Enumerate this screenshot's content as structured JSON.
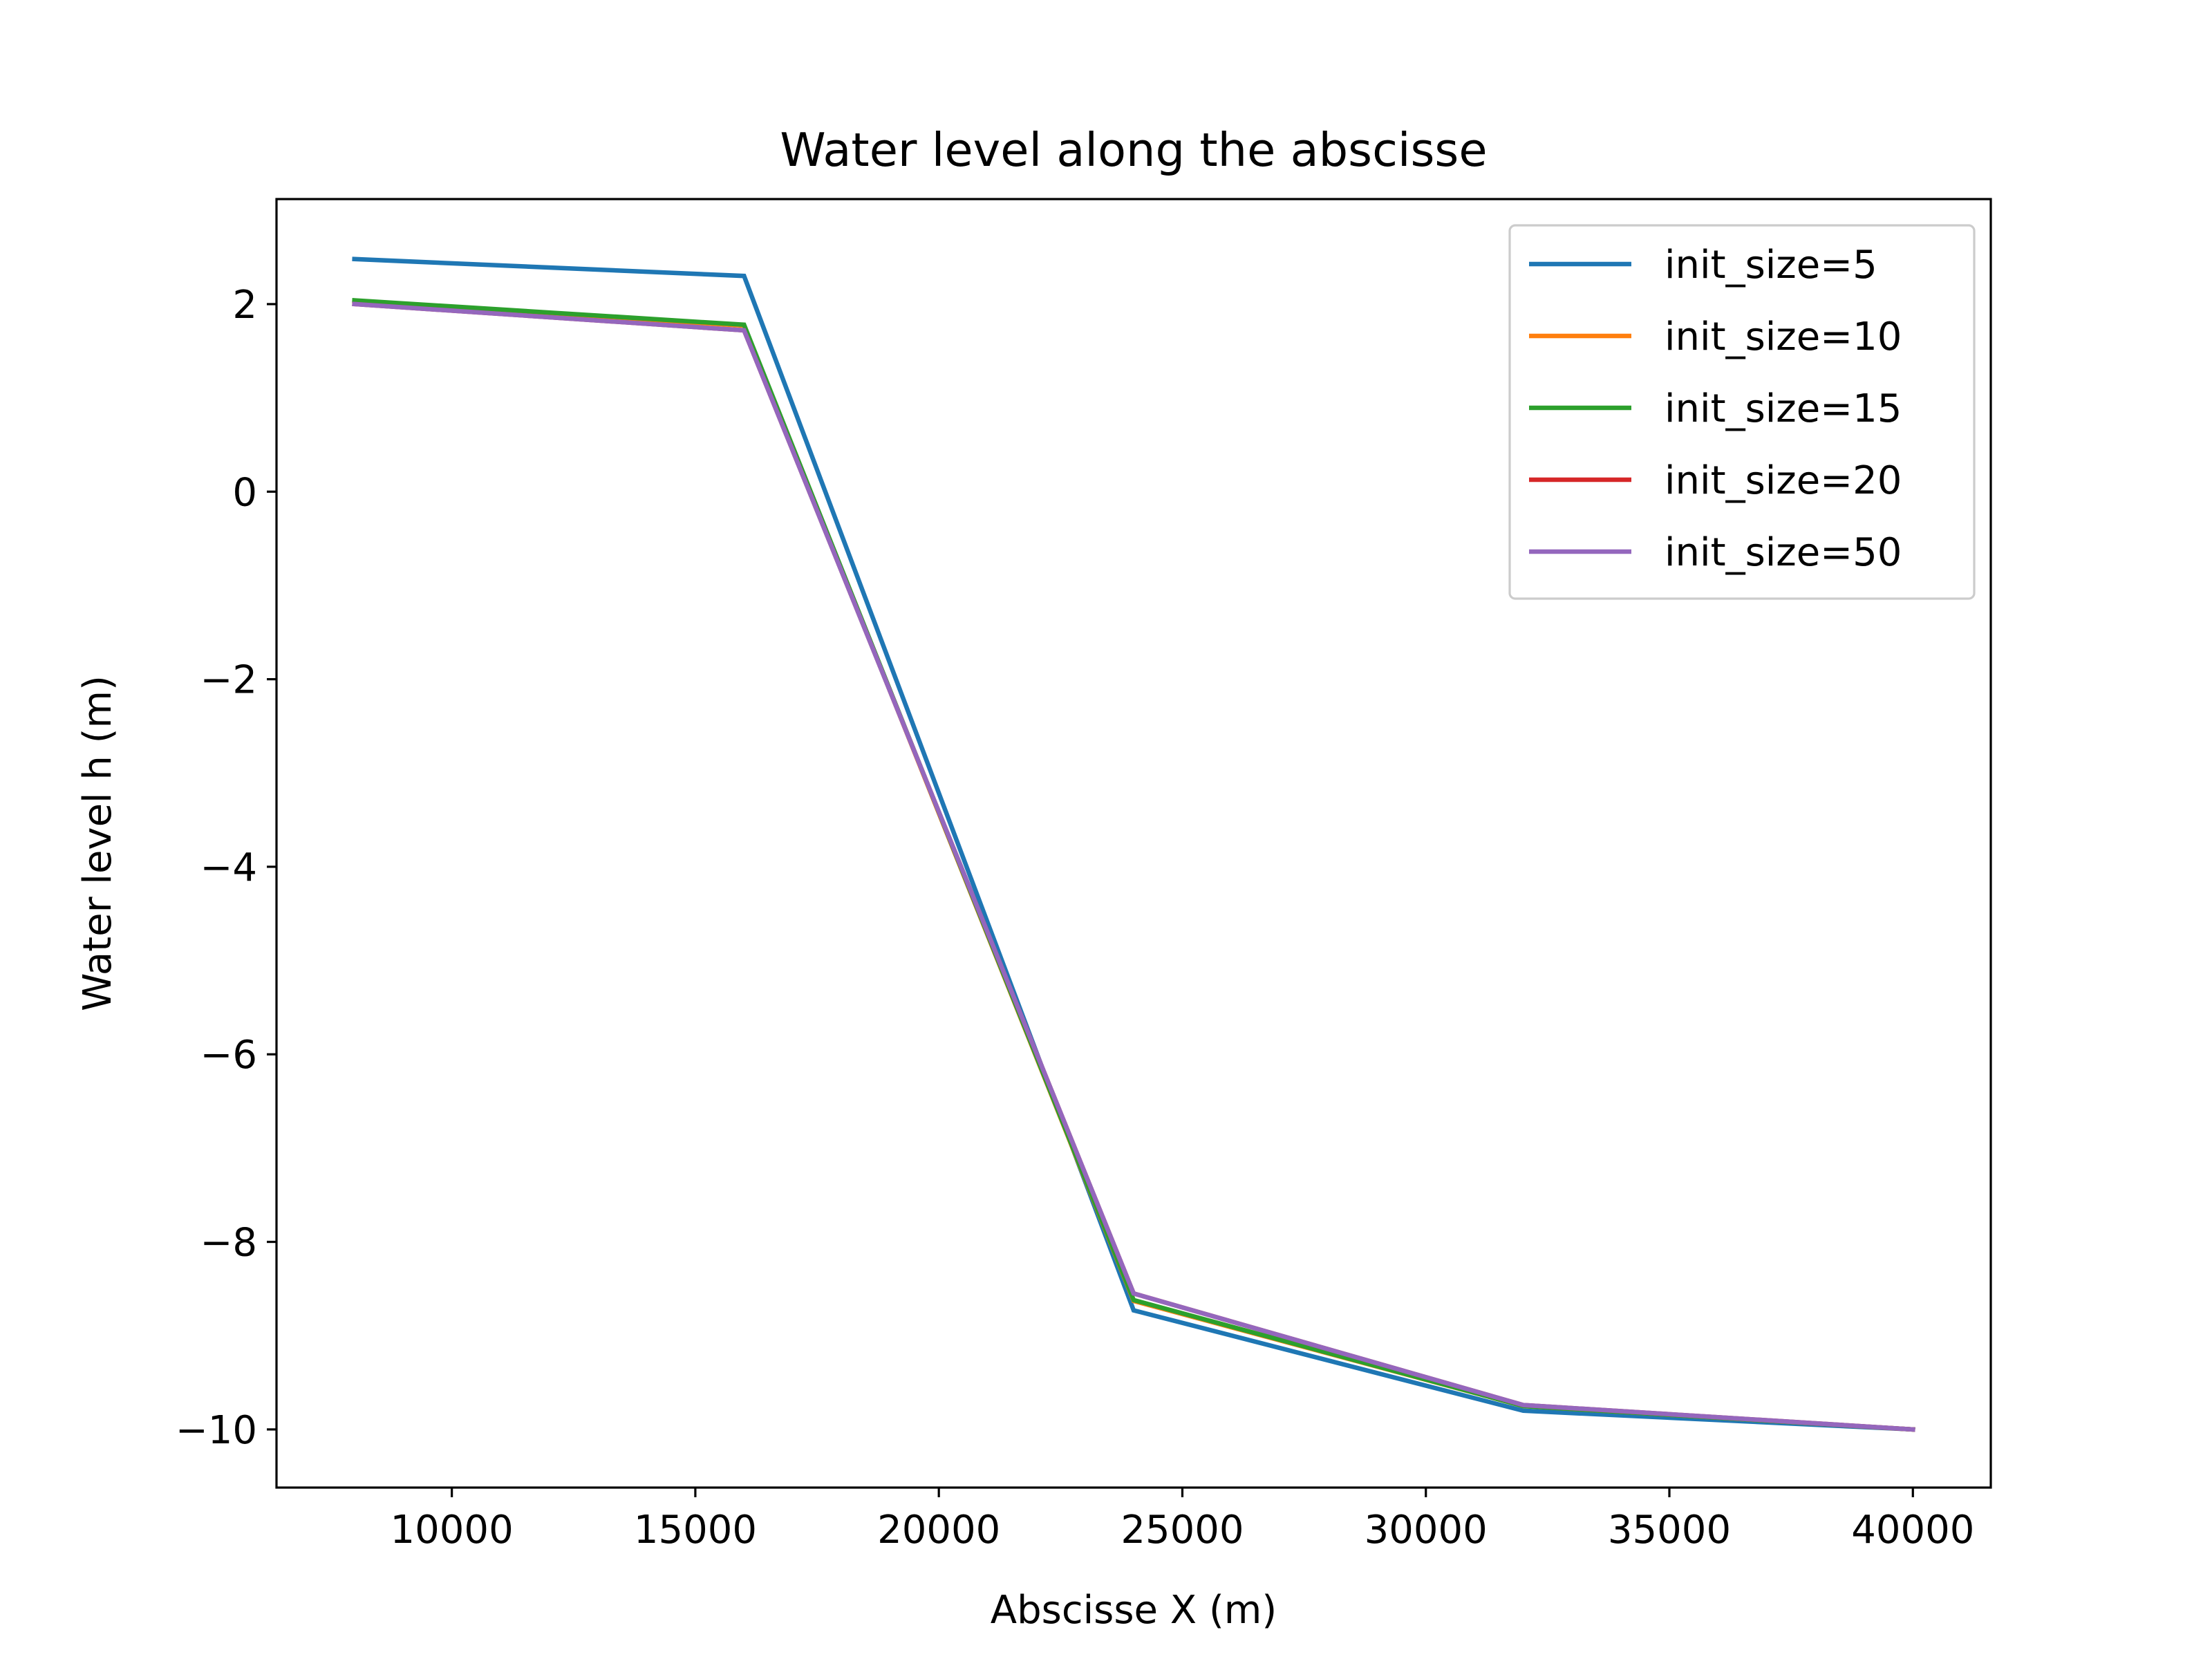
{
  "chart_data": {
    "type": "line",
    "title": "Water level along the abscisse",
    "xlabel": "Abscisse X (m)",
    "ylabel": "Water level h (m)",
    "xlim": [
      6400,
      41600
    ],
    "ylim": [
      -10.62,
      3.12
    ],
    "xticks": [
      10000,
      15000,
      20000,
      25000,
      30000,
      35000,
      40000
    ],
    "xtick_labels": [
      "10000",
      "15000",
      "20000",
      "25000",
      "30000",
      "35000",
      "40000"
    ],
    "yticks": [
      2,
      0,
      -2,
      -4,
      -6,
      -8,
      -10
    ],
    "ytick_labels": [
      "2",
      "0",
      "−2",
      "−4",
      "−6",
      "−8",
      "−10"
    ],
    "grid": false,
    "legend_position": "top-right",
    "x": [
      8000,
      16000,
      24000,
      32000,
      40000
    ],
    "series": [
      {
        "name": "init_size=5",
        "color": "#1f77b4",
        "values": [
          2.48,
          2.3,
          -8.73,
          -9.8,
          -10.0
        ]
      },
      {
        "name": "init_size=10",
        "color": "#ff7f0e",
        "values": [
          2.03,
          1.77,
          -8.63,
          -9.75,
          -10.0
        ]
      },
      {
        "name": "init_size=15",
        "color": "#2ca02c",
        "values": [
          2.04,
          1.78,
          -8.62,
          -9.75,
          -10.0
        ]
      },
      {
        "name": "init_size=20",
        "color": "#d62728",
        "values": [
          2.0,
          1.72,
          -8.55,
          -9.74,
          -10.0
        ]
      },
      {
        "name": "init_size=50",
        "color": "#9467bd",
        "values": [
          2.0,
          1.72,
          -8.55,
          -9.74,
          -10.0
        ]
      }
    ]
  }
}
